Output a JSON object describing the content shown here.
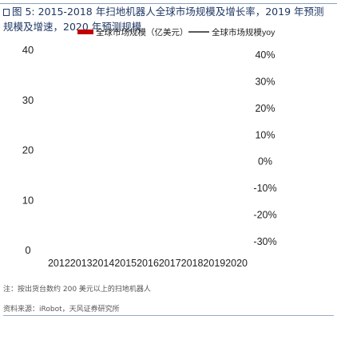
{
  "figure": {
    "label": "图 5:",
    "title": "2015-2018 年扫地机器人全球市场规模及增长率，2019 年预测规模及增速，2020 年预测规模"
  },
  "chart_data": {
    "type": "bar+line",
    "categories": [
      "2012",
      "2013",
      "2014",
      "2015",
      "2016",
      "2017",
      "2018",
      "2019",
      "2020"
    ],
    "series": [
      {
        "name": "全球市场规模（亿美元）",
        "kind": "bar",
        "axis": "left",
        "color": "#c00000",
        "values": [
          null,
          null,
          null,
          null,
          null,
          null,
          null,
          null,
          null
        ]
      },
      {
        "name": "全球市场规模yoy",
        "kind": "line",
        "axis": "right",
        "color": "#222222",
        "values": [
          null,
          null,
          null,
          null,
          null,
          null,
          null,
          null,
          null
        ]
      }
    ],
    "left_axis": {
      "min": 0,
      "max": 40,
      "ticks": [
        "0",
        "10",
        "20",
        "30",
        "40"
      ]
    },
    "right_axis": {
      "min": -30,
      "max": 40,
      "ticks": [
        "40%",
        "30%",
        "20%",
        "10%",
        "0%",
        "-10%",
        "-20%",
        "-30%"
      ]
    },
    "legend_position": "top",
    "grid": false
  },
  "note": "注：按出货台数约 200 美元以上的扫地机器人",
  "source": "资料来源：iRobot，天风证券研究所"
}
